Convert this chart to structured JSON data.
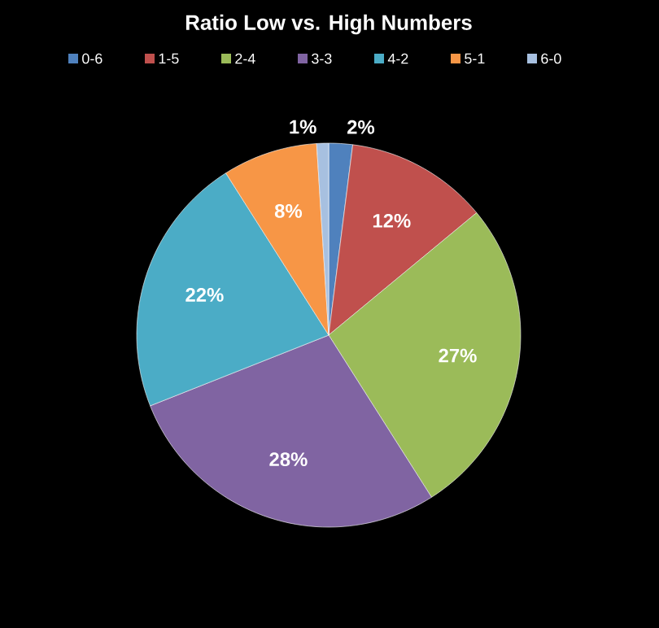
{
  "chart_data": {
    "type": "pie",
    "title": "Ratio Low vs. High Numbers",
    "categories": [
      "0-6",
      "1-5",
      "2-4",
      "3-3",
      "4-2",
      "5-1",
      "6-0"
    ],
    "values": [
      2,
      12,
      27,
      28,
      22,
      8,
      1
    ],
    "value_labels": [
      "2%",
      "12%",
      "27%",
      "28%",
      "22%",
      "8%",
      "1%"
    ],
    "colors": [
      "#4f81bd",
      "#c0504d",
      "#9bbb59",
      "#8064a2",
      "#4bacc6",
      "#f79646",
      "#a7c0e0"
    ],
    "legend": "top"
  }
}
